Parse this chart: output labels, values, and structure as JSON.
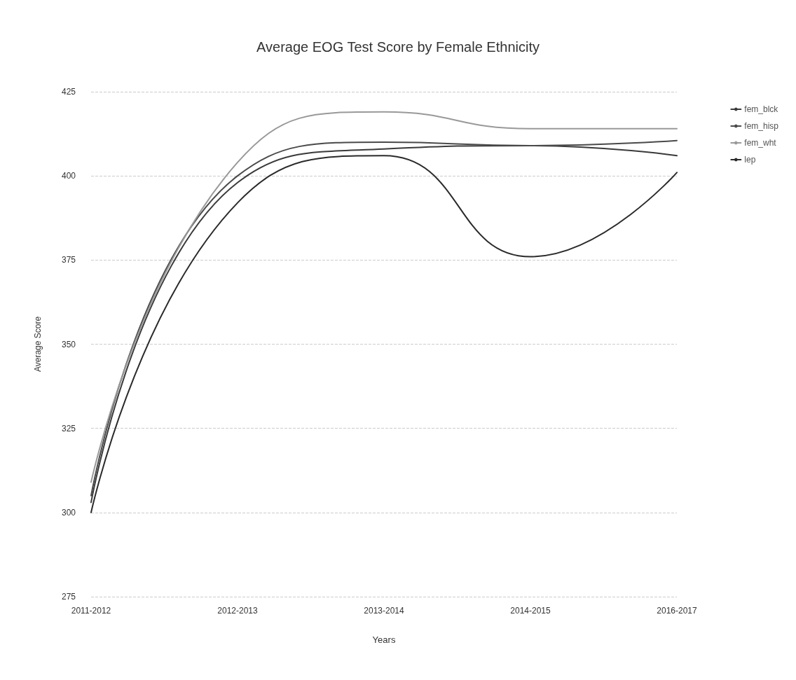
{
  "chart_data": {
    "type": "line",
    "title": "Average EOG Test Score by Female Ethnicity",
    "xlabel": "Years",
    "ylabel": "Average Score",
    "categories": [
      "2011-2012",
      "2012-2013",
      "2013-2014",
      "2014-2015",
      "2016-2017"
    ],
    "series": [
      {
        "name": "fem_blck",
        "color": "#3a3a3a",
        "values": [
          303,
          398,
          408,
          409,
          406
        ]
      },
      {
        "name": "fem_hisp",
        "color": "#4a4a4a",
        "values": [
          305,
          400,
          410,
          409,
          410.5
        ]
      },
      {
        "name": "fem_wht",
        "color": "#999999",
        "values": [
          309,
          404,
          419,
          414,
          414
        ]
      },
      {
        "name": "lep",
        "color": "#2a2a2a",
        "values": [
          300,
          392,
          406,
          376,
          401
        ]
      }
    ],
    "ylim": [
      275,
      425
    ],
    "yticks": [
      275,
      300,
      325,
      350,
      375,
      400,
      425
    ],
    "grid": "y",
    "legend": "top right",
    "marker": "none",
    "line_style": "solid"
  }
}
